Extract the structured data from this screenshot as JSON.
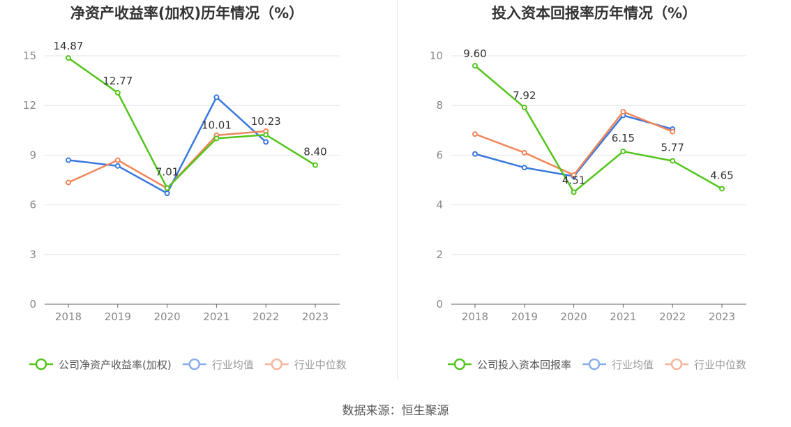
{
  "source": "数据来源：恒生聚源",
  "colors": {
    "company": "#52c41a",
    "industry_avg": "#3a78de",
    "industry_median": "#f0865a",
    "grid": "#e6e6e6",
    "axis": "#666666"
  },
  "chart_data": [
    {
      "type": "line",
      "title": "净资产收益率(加权)历年情况（%）",
      "categories": [
        "2018",
        "2019",
        "2020",
        "2021",
        "2022",
        "2023"
      ],
      "ylim": [
        0,
        15
      ],
      "yticks": [
        0,
        3,
        6,
        9,
        12,
        15
      ],
      "grid": true,
      "legend_position": "bottom",
      "series": [
        {
          "name": "公司净资产收益率(加权)",
          "color_key": "company",
          "values": [
            14.87,
            12.77,
            7.01,
            10.01,
            10.23,
            8.4
          ],
          "labels": [
            "14.87",
            "12.77",
            "7.01",
            "10.01",
            "10.23",
            "8.40"
          ]
        },
        {
          "name": "行业均值",
          "color_key": "industry_avg",
          "values": [
            8.7,
            8.35,
            6.7,
            12.5,
            9.8,
            null
          ]
        },
        {
          "name": "行业中位数",
          "color_key": "industry_median",
          "values": [
            7.35,
            8.7,
            7.0,
            10.2,
            10.45,
            null
          ]
        }
      ]
    },
    {
      "type": "line",
      "title": "投入资本回报率历年情况（%）",
      "categories": [
        "2018",
        "2019",
        "2020",
        "2021",
        "2022",
        "2023"
      ],
      "ylim": [
        0,
        10
      ],
      "yticks": [
        0,
        2,
        4,
        6,
        8,
        10
      ],
      "grid": true,
      "legend_position": "bottom",
      "series": [
        {
          "name": "公司投入资本回报率",
          "color_key": "company",
          "values": [
            9.6,
            7.92,
            4.51,
            6.15,
            5.77,
            4.65
          ],
          "labels": [
            "9.60",
            "7.92",
            "4.51",
            "6.15",
            "5.77",
            "4.65"
          ]
        },
        {
          "name": "行业均值",
          "color_key": "industry_avg",
          "values": [
            6.05,
            5.5,
            5.15,
            7.6,
            7.05,
            null
          ]
        },
        {
          "name": "行业中位数",
          "color_key": "industry_median",
          "values": [
            6.85,
            6.1,
            5.2,
            7.75,
            6.95,
            null
          ]
        }
      ]
    }
  ]
}
